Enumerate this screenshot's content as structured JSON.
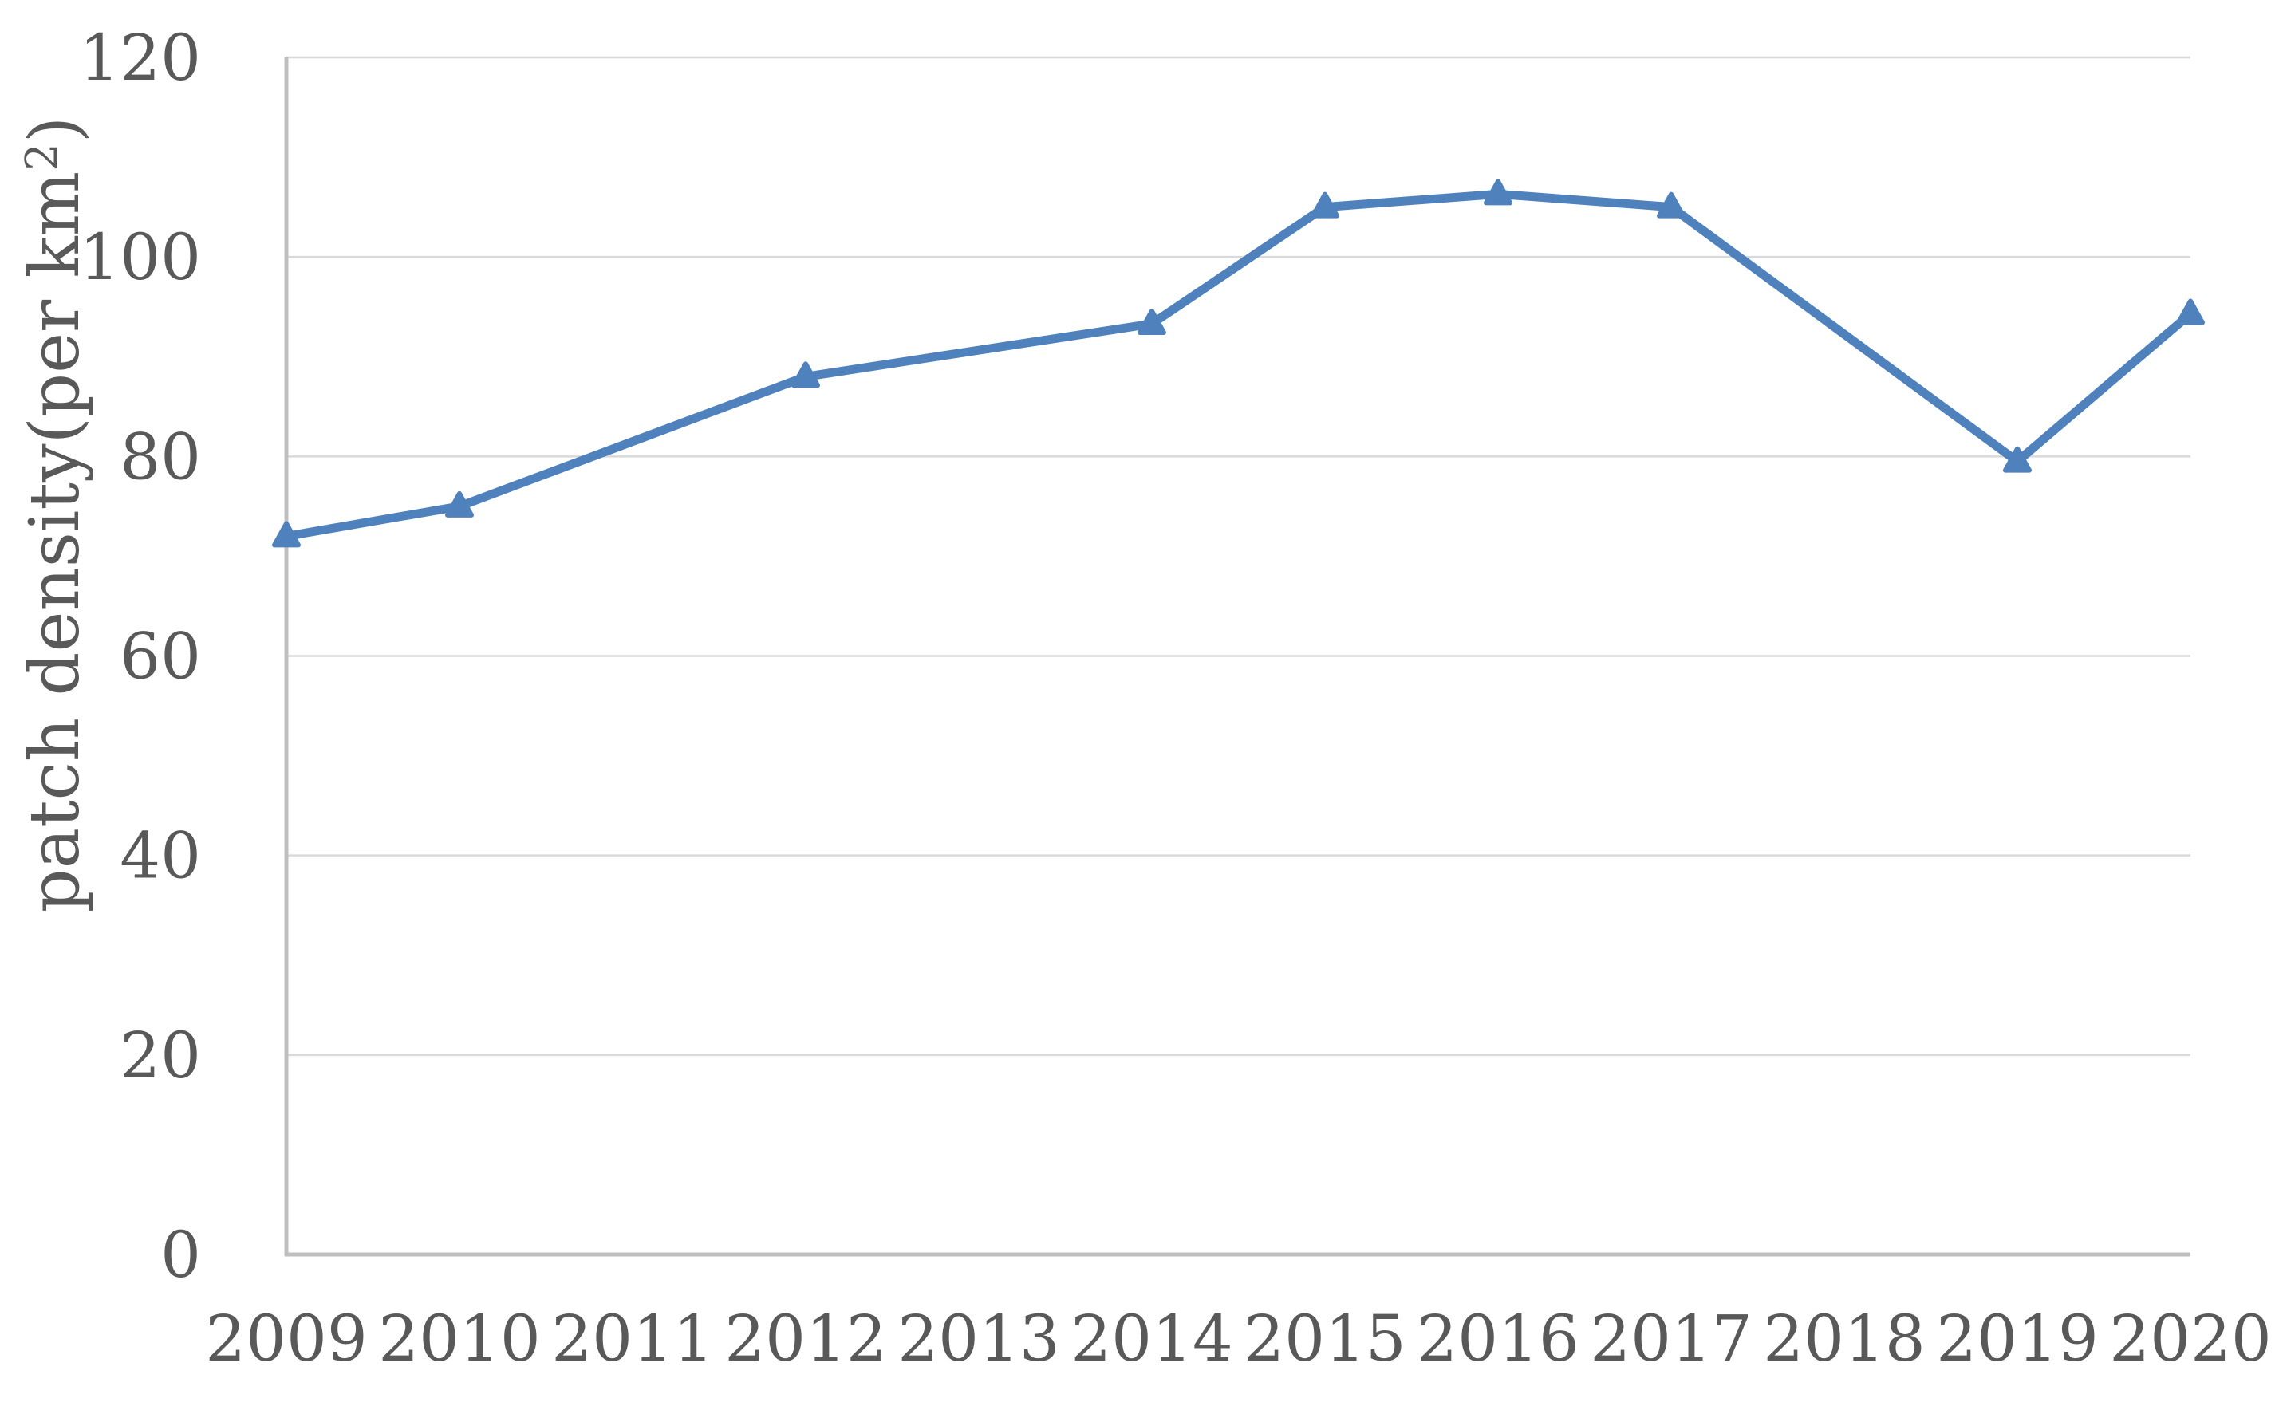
{
  "chart_data": {
    "type": "line",
    "title": "",
    "categories": [
      "2009",
      "2010",
      "2011",
      "2012",
      "2013",
      "2014",
      "2015",
      "2016",
      "2017",
      "2018",
      "2019",
      "2020"
    ],
    "values": [
      72,
      75,
      null,
      88,
      null,
      93.3,
      105,
      106.3,
      105,
      null,
      79.5,
      94.3
    ],
    "xlabel": "",
    "ylabel": "patch density(per km²)",
    "ylabel_parts": {
      "prefix": "patch density(per km",
      "superscript": "2",
      "suffix": ")"
    },
    "ylim": [
      0,
      120
    ],
    "yticks": [
      0,
      20,
      40,
      60,
      80,
      100,
      120
    ],
    "ytick_labels": [
      "0",
      "20",
      "40",
      "60",
      "80",
      "100",
      "120"
    ],
    "grid": "horizontal",
    "legend": "none",
    "marker": "triangle-up",
    "line_connects_gaps": true,
    "colors": {
      "line": "#4F81BD",
      "marker": "#4F81BD",
      "gridline": "#D9D9D9",
      "axis": "#BFBFBF",
      "text": "#595959",
      "background": "#FFFFFF"
    }
  }
}
